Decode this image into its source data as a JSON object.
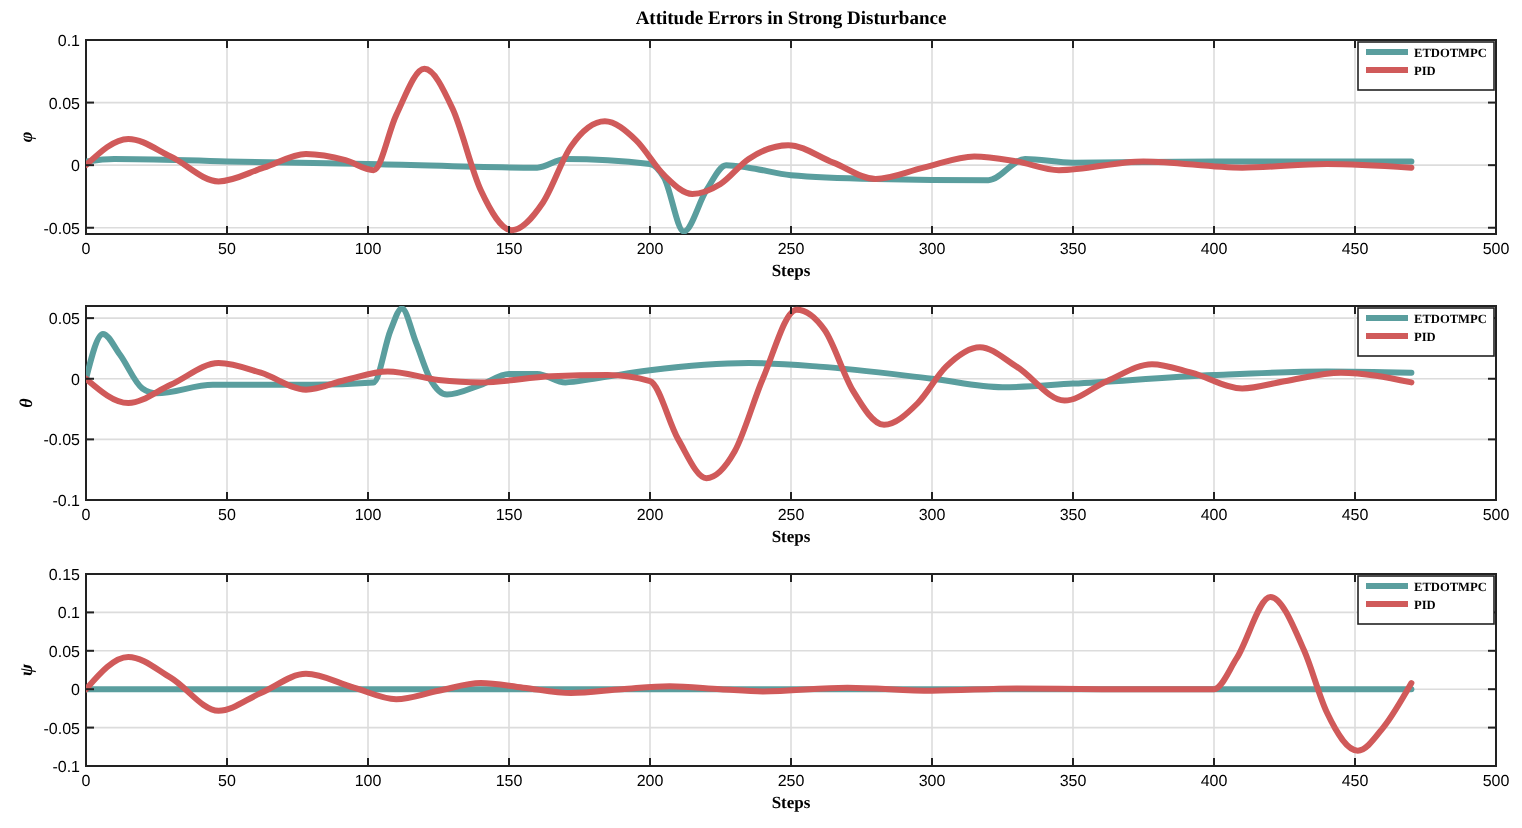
{
  "chart_data": [
    {
      "type": "line",
      "title": "Attitude Errors in Strong Disturbance",
      "xlabel": "Steps",
      "ylabel": "φ",
      "xlim": [
        0,
        500
      ],
      "xticks": [
        0,
        50,
        100,
        150,
        200,
        250,
        300,
        350,
        400,
        450,
        500
      ],
      "ylim": [
        -0.055,
        0.1
      ],
      "yticks": [
        -0.05,
        0,
        0.05,
        0.1
      ],
      "grid": true,
      "legend": "top right",
      "series": [
        {
          "name": "ETDOTMPC",
          "color": "#5a9e9e",
          "x": [
            0,
            10,
            50,
            100,
            160,
            170,
            200,
            205,
            212,
            220,
            227,
            235,
            250,
            280,
            320,
            333,
            350,
            400,
            470
          ],
          "values": [
            0.003,
            0.005,
            0.003,
            0.001,
            -0.002,
            0.005,
            0.001,
            -0.01,
            -0.053,
            -0.02,
            0,
            -0.002,
            -0.008,
            -0.011,
            -0.012,
            0.005,
            0.002,
            0.003,
            0.003
          ]
        },
        {
          "name": "PID",
          "color": "#d05a5a",
          "x": [
            0,
            15,
            30,
            47,
            63,
            78,
            92,
            102,
            110,
            120,
            130,
            140,
            151,
            162,
            172,
            184,
            195,
            205,
            215,
            225,
            235,
            249,
            265,
            280,
            297,
            315,
            330,
            345,
            375,
            410,
            440,
            470
          ],
          "values": [
            0,
            0.021,
            0.007,
            -0.013,
            -0.002,
            0.009,
            0.004,
            -0.004,
            0.04,
            0.077,
            0.045,
            -0.02,
            -0.052,
            -0.03,
            0.015,
            0.035,
            0.02,
            -0.008,
            -0.023,
            -0.015,
            0.005,
            0.016,
            0.002,
            -0.011,
            -0.002,
            0.007,
            0.003,
            -0.004,
            0.003,
            -0.002,
            0.001,
            -0.002
          ]
        }
      ]
    },
    {
      "type": "line",
      "xlabel": "Steps",
      "ylabel": "θ",
      "xlim": [
        0,
        500
      ],
      "xticks": [
        0,
        50,
        100,
        150,
        200,
        250,
        300,
        350,
        400,
        450,
        500
      ],
      "ylim": [
        -0.1,
        0.06
      ],
      "yticks": [
        -0.1,
        -0.05,
        0,
        0.05
      ],
      "grid": true,
      "legend": "top right",
      "series": [
        {
          "name": "ETDOTMPC",
          "color": "#5a9e9e",
          "x": [
            0,
            6,
            12,
            20,
            25,
            45,
            80,
            102,
            108,
            112,
            117,
            122,
            128,
            140,
            150,
            160,
            170,
            180,
            200,
            235,
            260,
            300,
            325,
            350,
            400,
            440,
            470
          ],
          "values": [
            0,
            0.037,
            0.02,
            -0.008,
            -0.012,
            -0.005,
            -0.005,
            -0.003,
            0.04,
            0.058,
            0.03,
            0,
            -0.013,
            -0.005,
            0.004,
            0.004,
            -0.003,
            0,
            0.007,
            0.013,
            0.01,
            0,
            -0.007,
            -0.004,
            0.003,
            0.006,
            0.005
          ]
        },
        {
          "name": "PID",
          "color": "#d05a5a",
          "x": [
            0,
            15,
            30,
            47,
            62,
            78,
            92,
            107,
            125,
            140,
            165,
            185,
            200,
            210,
            220,
            230,
            240,
            252,
            262,
            272,
            283,
            295,
            305,
            317,
            330,
            347,
            362,
            378,
            392,
            410,
            425,
            445,
            470
          ],
          "values": [
            0,
            -0.02,
            -0.005,
            0.013,
            0.005,
            -0.009,
            -0.001,
            0.006,
            -0.001,
            -0.003,
            0.002,
            0.003,
            -0.002,
            -0.05,
            -0.082,
            -0.06,
            0,
            0.057,
            0.04,
            -0.01,
            -0.038,
            -0.02,
            0.01,
            0.026,
            0.01,
            -0.018,
            -0.002,
            0.012,
            0.005,
            -0.008,
            -0.002,
            0.005,
            -0.003
          ]
        }
      ]
    },
    {
      "type": "line",
      "xlabel": "Steps",
      "ylabel": "ψ",
      "xlim": [
        0,
        500
      ],
      "xticks": [
        0,
        50,
        100,
        150,
        200,
        250,
        300,
        350,
        400,
        450,
        500
      ],
      "ylim": [
        -0.1,
        0.15
      ],
      "yticks": [
        -0.1,
        -0.05,
        0,
        0.05,
        0.1,
        0.15
      ],
      "grid": true,
      "legend": "top right",
      "series": [
        {
          "name": "ETDOTMPC",
          "color": "#5a9e9e",
          "x": [
            0,
            100,
            200,
            300,
            400,
            470
          ],
          "values": [
            0,
            0,
            0,
            0,
            0,
            0
          ]
        },
        {
          "name": "PID",
          "color": "#d05a5a",
          "x": [
            0,
            15,
            30,
            47,
            62,
            78,
            95,
            110,
            125,
            140,
            155,
            172,
            190,
            207,
            225,
            240,
            270,
            300,
            330,
            360,
            400,
            408,
            420,
            432,
            440,
            451,
            460,
            470
          ],
          "values": [
            0,
            0.042,
            0.015,
            -0.028,
            -0.005,
            0.02,
            0.002,
            -0.013,
            -0.002,
            0.008,
            0.002,
            -0.005,
            0,
            0.004,
            0,
            -0.003,
            0.002,
            -0.002,
            0.001,
            0,
            0,
            0.04,
            0.12,
            0.05,
            -0.03,
            -0.08,
            -0.05,
            0.008
          ]
        }
      ]
    }
  ]
}
